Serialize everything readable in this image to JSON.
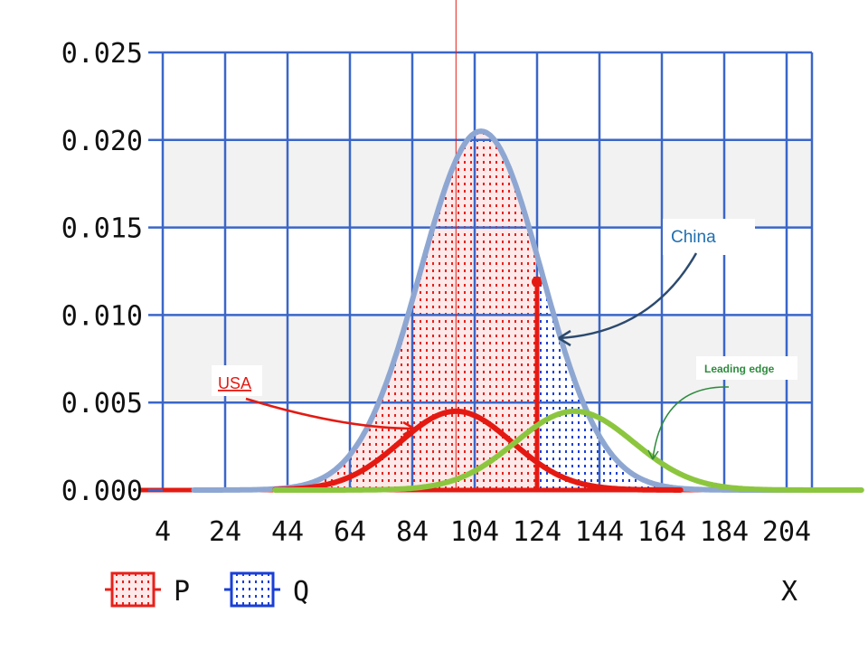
{
  "chart_data": {
    "type": "area",
    "xlabel": "X",
    "ylabel": "",
    "xlim": [
      0,
      210
    ],
    "ylim": [
      0,
      0.025
    ],
    "x_ticks": [
      4,
      24,
      44,
      64,
      84,
      104,
      124,
      144,
      164,
      184,
      204
    ],
    "x_tick_labels": [
      "4",
      "24",
      "44",
      "64",
      "84",
      "104",
      "124",
      "144",
      "164",
      "184",
      "204"
    ],
    "y_ticks": [
      0,
      0.005,
      0.01,
      0.015,
      0.02,
      0.025
    ],
    "y_tick_labels": [
      "0.000",
      "0.005",
      "0.010",
      "0.015",
      "0.020",
      "0.025"
    ],
    "grid": true,
    "legend": {
      "placement": "bottom-left",
      "entries": [
        {
          "label": "P",
          "color": "#e8201a"
        },
        {
          "label": "Q",
          "color": "#1a3fd6"
        }
      ]
    },
    "cutoff_x": 124,
    "cutoff_density": 0.0119,
    "vertical_marker_x": 98,
    "series": [
      {
        "name": "China",
        "mean": 106,
        "sd": 19.5,
        "peak": 0.0205,
        "color": "#8ea7d2"
      },
      {
        "name": "USA",
        "mean": 98,
        "sd": 18,
        "peak": 0.0045,
        "color": "#e41a12"
      },
      {
        "name": "Leading edge",
        "mean": 136,
        "sd": 19,
        "peak": 0.0045,
        "color": "#8cc63f"
      }
    ],
    "annotations": [
      {
        "text": "China",
        "color": "#1f6fb0"
      },
      {
        "text": "USA",
        "color": "#e41a12"
      },
      {
        "text": "Leading edge",
        "color": "#2e8b3e"
      }
    ]
  }
}
